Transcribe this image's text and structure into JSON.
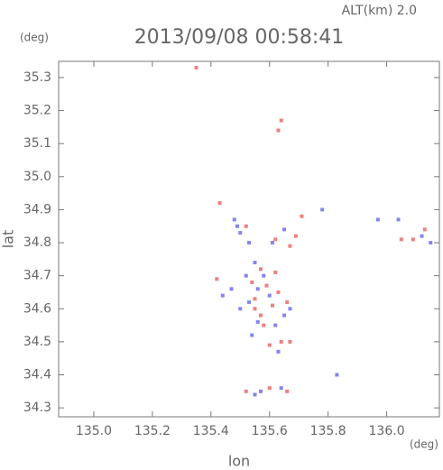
{
  "chart_data": {
    "type": "scatter",
    "title": "2013/09/08 00:58:41",
    "subtitle": "ALT(km) 2.0",
    "x_label": "lon",
    "y_label": "lat",
    "x_unit": "(deg)",
    "y_unit": "(deg)",
    "xlim": [
      134.88,
      136.18
    ],
    "ylim": [
      34.273,
      35.349
    ],
    "xticks": [
      {
        "value": 135,
        "label": "135.0"
      },
      135.2,
      135.4,
      135.6,
      135.8,
      {
        "value": 136,
        "label": "136.0"
      }
    ],
    "yticks": [
      34.3,
      34.4,
      34.5,
      34.6,
      34.7,
      34.8,
      34.9,
      {
        "value": 35,
        "label": "35.0"
      },
      35.1,
      35.2,
      35.3
    ],
    "series": [
      {
        "color": "#ee7f7f",
        "x": [
          135.35,
          135.64,
          135.63,
          135.43,
          135.71,
          135.69,
          135.62,
          135.67,
          135.52,
          136.09,
          136.05,
          136.13,
          135.57,
          135.62,
          135.59,
          135.63,
          135.55,
          135.57,
          135.61,
          135.66,
          135.58,
          135.64,
          135.67,
          135.6,
          135.55,
          135.6,
          135.66,
          135.52,
          135.42,
          135.54
        ],
        "values": [
          35.33,
          35.17,
          35.14,
          34.92,
          34.88,
          34.82,
          34.81,
          34.79,
          34.85,
          34.81,
          34.81,
          34.84,
          34.72,
          34.71,
          34.67,
          34.65,
          34.63,
          34.58,
          34.61,
          34.62,
          34.55,
          34.5,
          34.5,
          34.49,
          34.6,
          34.36,
          34.35,
          34.35,
          34.69,
          34.68
        ]
      },
      {
        "color": "#8585ee",
        "x": [
          135.48,
          135.5,
          135.53,
          135.49,
          135.61,
          135.65,
          135.78,
          135.97,
          136.04,
          136.15,
          136.12,
          135.55,
          135.52,
          135.56,
          135.53,
          135.6,
          135.65,
          135.56,
          135.62,
          135.67,
          135.54,
          135.63,
          135.5,
          135.47,
          135.58,
          135.55,
          135.57,
          135.64,
          135.83,
          135.44
        ],
        "values": [
          34.87,
          34.83,
          34.8,
          34.85,
          34.8,
          34.84,
          34.9,
          34.87,
          34.87,
          34.8,
          34.82,
          34.74,
          34.7,
          34.66,
          34.62,
          34.64,
          34.58,
          34.56,
          34.55,
          34.6,
          34.52,
          34.47,
          34.6,
          34.66,
          34.7,
          34.34,
          34.35,
          34.36,
          34.4,
          34.64
        ]
      }
    ]
  }
}
